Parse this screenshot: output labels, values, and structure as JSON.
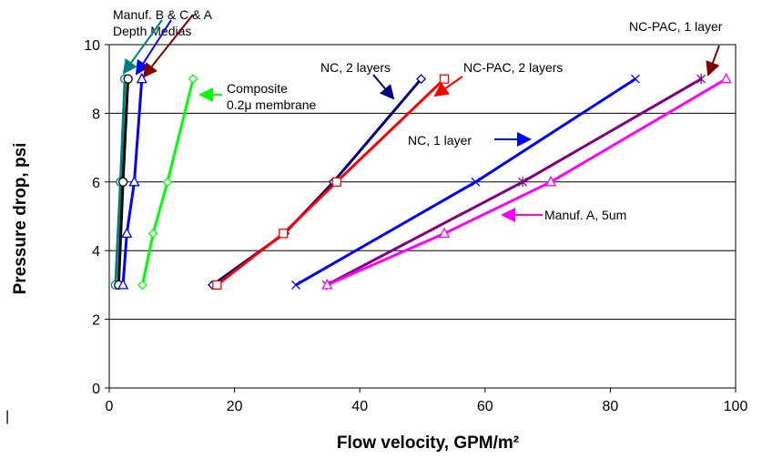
{
  "chart_data": {
    "type": "line",
    "title": "",
    "xlabel": "Flow velocity, GPM/m²",
    "ylabel": "Pressure drop, psi",
    "xlim": [
      0,
      100
    ],
    "ylim": [
      0,
      10
    ],
    "xticks": [
      0,
      20,
      40,
      60,
      80,
      100
    ],
    "yticks": [
      0,
      2,
      4,
      6,
      8,
      10
    ],
    "xtick_labels": [
      "0",
      "20",
      "40",
      "60",
      "80",
      "100"
    ],
    "ytick_labels": [
      "0",
      "2",
      "4",
      "6",
      "8",
      "10"
    ],
    "grid": "horizontal",
    "legend": "none",
    "series": [
      {
        "color": "#008080",
        "marker": "circle",
        "x": [
          1.0,
          1.8,
          2.5
        ],
        "y": [
          3,
          6,
          9
        ]
      },
      {
        "color": "#000000",
        "marker": "circle",
        "x": [
          1.5,
          2.2,
          3.0
        ],
        "y": [
          3,
          6,
          9
        ]
      },
      {
        "color": "#0000ff",
        "marker": "triangle",
        "x": [
          2.2,
          2.8,
          4.0,
          5.2
        ],
        "y": [
          3,
          4.5,
          6,
          9
        ]
      },
      {
        "color": "#00ff00",
        "marker": "diamond",
        "x": [
          5.3,
          7.0,
          9.3,
          13.4
        ],
        "y": [
          3,
          4.5,
          6,
          9
        ]
      },
      {
        "color": "#000080",
        "marker": "diamond",
        "x": [
          16.5,
          28.0,
          35.8,
          49.8
        ],
        "y": [
          3,
          4.5,
          6,
          9
        ]
      },
      {
        "color": "#ff0000",
        "marker": "square",
        "x": [
          17.2,
          27.8,
          36.3,
          53.5
        ],
        "y": [
          3,
          4.5,
          6,
          9
        ]
      },
      {
        "color": "#0000ff",
        "marker": "x",
        "x": [
          29.8,
          58.5,
          84.0
        ],
        "y": [
          3,
          6,
          9
        ]
      },
      {
        "color": "#800080",
        "marker": "star",
        "x": [
          34.7,
          66.0,
          94.5
        ],
        "y": [
          3,
          6,
          9
        ]
      },
      {
        "color": "#ff00ff",
        "marker": "triangle",
        "x": [
          34.8,
          53.5,
          70.5,
          98.5
        ],
        "y": [
          3,
          4.5,
          6,
          9
        ]
      }
    ],
    "annotations": [
      {
        "text": "Manuf. B & C & A"
      },
      {
        "text": "Depth Medias"
      },
      {
        "text": "Composite"
      },
      {
        "text": "0.2μ membrane"
      },
      {
        "text": "NC, 2 layers"
      },
      {
        "text": "NC-PAC, 2 layers"
      },
      {
        "text": "NC-PAC, 1 layer"
      },
      {
        "text": "NC, 1 layer"
      },
      {
        "text": "Manuf. A, 5um"
      }
    ],
    "stray_label": "|"
  }
}
